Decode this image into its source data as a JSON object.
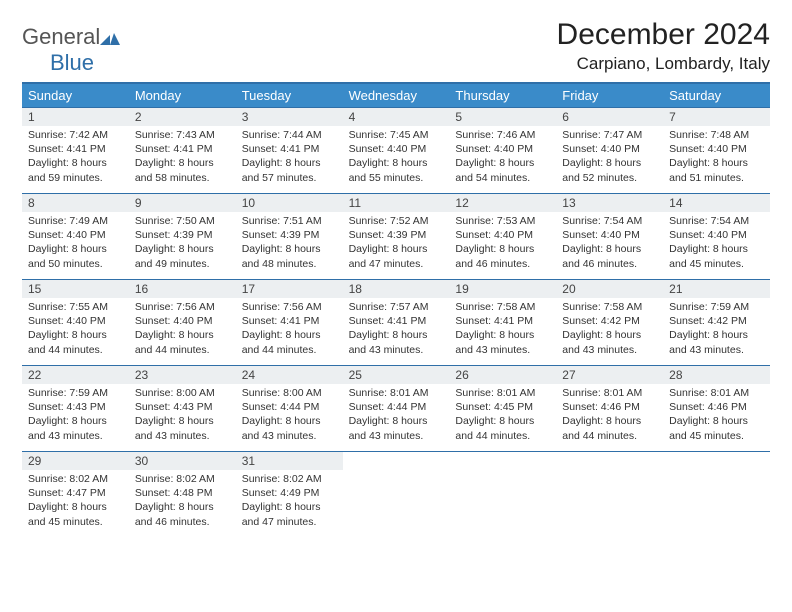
{
  "brand": {
    "part1": "General",
    "part2": "Blue"
  },
  "title": "December 2024",
  "location": "Carpiano, Lombardy, Italy",
  "colors": {
    "header_bg": "#3a8bc9",
    "rule": "#2f6fa8",
    "daynum_bg": "#eceff1",
    "text": "#333333",
    "bg": "#ffffff"
  },
  "weekdays": [
    "Sunday",
    "Monday",
    "Tuesday",
    "Wednesday",
    "Thursday",
    "Friday",
    "Saturday"
  ],
  "days": [
    {
      "n": "1",
      "sr": "7:42 AM",
      "ss": "4:41 PM",
      "dl": "8 hours and 59 minutes."
    },
    {
      "n": "2",
      "sr": "7:43 AM",
      "ss": "4:41 PM",
      "dl": "8 hours and 58 minutes."
    },
    {
      "n": "3",
      "sr": "7:44 AM",
      "ss": "4:41 PM",
      "dl": "8 hours and 57 minutes."
    },
    {
      "n": "4",
      "sr": "7:45 AM",
      "ss": "4:40 PM",
      "dl": "8 hours and 55 minutes."
    },
    {
      "n": "5",
      "sr": "7:46 AM",
      "ss": "4:40 PM",
      "dl": "8 hours and 54 minutes."
    },
    {
      "n": "6",
      "sr": "7:47 AM",
      "ss": "4:40 PM",
      "dl": "8 hours and 52 minutes."
    },
    {
      "n": "7",
      "sr": "7:48 AM",
      "ss": "4:40 PM",
      "dl": "8 hours and 51 minutes."
    },
    {
      "n": "8",
      "sr": "7:49 AM",
      "ss": "4:40 PM",
      "dl": "8 hours and 50 minutes."
    },
    {
      "n": "9",
      "sr": "7:50 AM",
      "ss": "4:39 PM",
      "dl": "8 hours and 49 minutes."
    },
    {
      "n": "10",
      "sr": "7:51 AM",
      "ss": "4:39 PM",
      "dl": "8 hours and 48 minutes."
    },
    {
      "n": "11",
      "sr": "7:52 AM",
      "ss": "4:39 PM",
      "dl": "8 hours and 47 minutes."
    },
    {
      "n": "12",
      "sr": "7:53 AM",
      "ss": "4:40 PM",
      "dl": "8 hours and 46 minutes."
    },
    {
      "n": "13",
      "sr": "7:54 AM",
      "ss": "4:40 PM",
      "dl": "8 hours and 46 minutes."
    },
    {
      "n": "14",
      "sr": "7:54 AM",
      "ss": "4:40 PM",
      "dl": "8 hours and 45 minutes."
    },
    {
      "n": "15",
      "sr": "7:55 AM",
      "ss": "4:40 PM",
      "dl": "8 hours and 44 minutes."
    },
    {
      "n": "16",
      "sr": "7:56 AM",
      "ss": "4:40 PM",
      "dl": "8 hours and 44 minutes."
    },
    {
      "n": "17",
      "sr": "7:56 AM",
      "ss": "4:41 PM",
      "dl": "8 hours and 44 minutes."
    },
    {
      "n": "18",
      "sr": "7:57 AM",
      "ss": "4:41 PM",
      "dl": "8 hours and 43 minutes."
    },
    {
      "n": "19",
      "sr": "7:58 AM",
      "ss": "4:41 PM",
      "dl": "8 hours and 43 minutes."
    },
    {
      "n": "20",
      "sr": "7:58 AM",
      "ss": "4:42 PM",
      "dl": "8 hours and 43 minutes."
    },
    {
      "n": "21",
      "sr": "7:59 AM",
      "ss": "4:42 PM",
      "dl": "8 hours and 43 minutes."
    },
    {
      "n": "22",
      "sr": "7:59 AM",
      "ss": "4:43 PM",
      "dl": "8 hours and 43 minutes."
    },
    {
      "n": "23",
      "sr": "8:00 AM",
      "ss": "4:43 PM",
      "dl": "8 hours and 43 minutes."
    },
    {
      "n": "24",
      "sr": "8:00 AM",
      "ss": "4:44 PM",
      "dl": "8 hours and 43 minutes."
    },
    {
      "n": "25",
      "sr": "8:01 AM",
      "ss": "4:44 PM",
      "dl": "8 hours and 43 minutes."
    },
    {
      "n": "26",
      "sr": "8:01 AM",
      "ss": "4:45 PM",
      "dl": "8 hours and 44 minutes."
    },
    {
      "n": "27",
      "sr": "8:01 AM",
      "ss": "4:46 PM",
      "dl": "8 hours and 44 minutes."
    },
    {
      "n": "28",
      "sr": "8:01 AM",
      "ss": "4:46 PM",
      "dl": "8 hours and 45 minutes."
    },
    {
      "n": "29",
      "sr": "8:02 AM",
      "ss": "4:47 PM",
      "dl": "8 hours and 45 minutes."
    },
    {
      "n": "30",
      "sr": "8:02 AM",
      "ss": "4:48 PM",
      "dl": "8 hours and 46 minutes."
    },
    {
      "n": "31",
      "sr": "8:02 AM",
      "ss": "4:49 PM",
      "dl": "8 hours and 47 minutes."
    }
  ],
  "labels": {
    "sunrise": "Sunrise:",
    "sunset": "Sunset:",
    "daylight": "Daylight:"
  }
}
